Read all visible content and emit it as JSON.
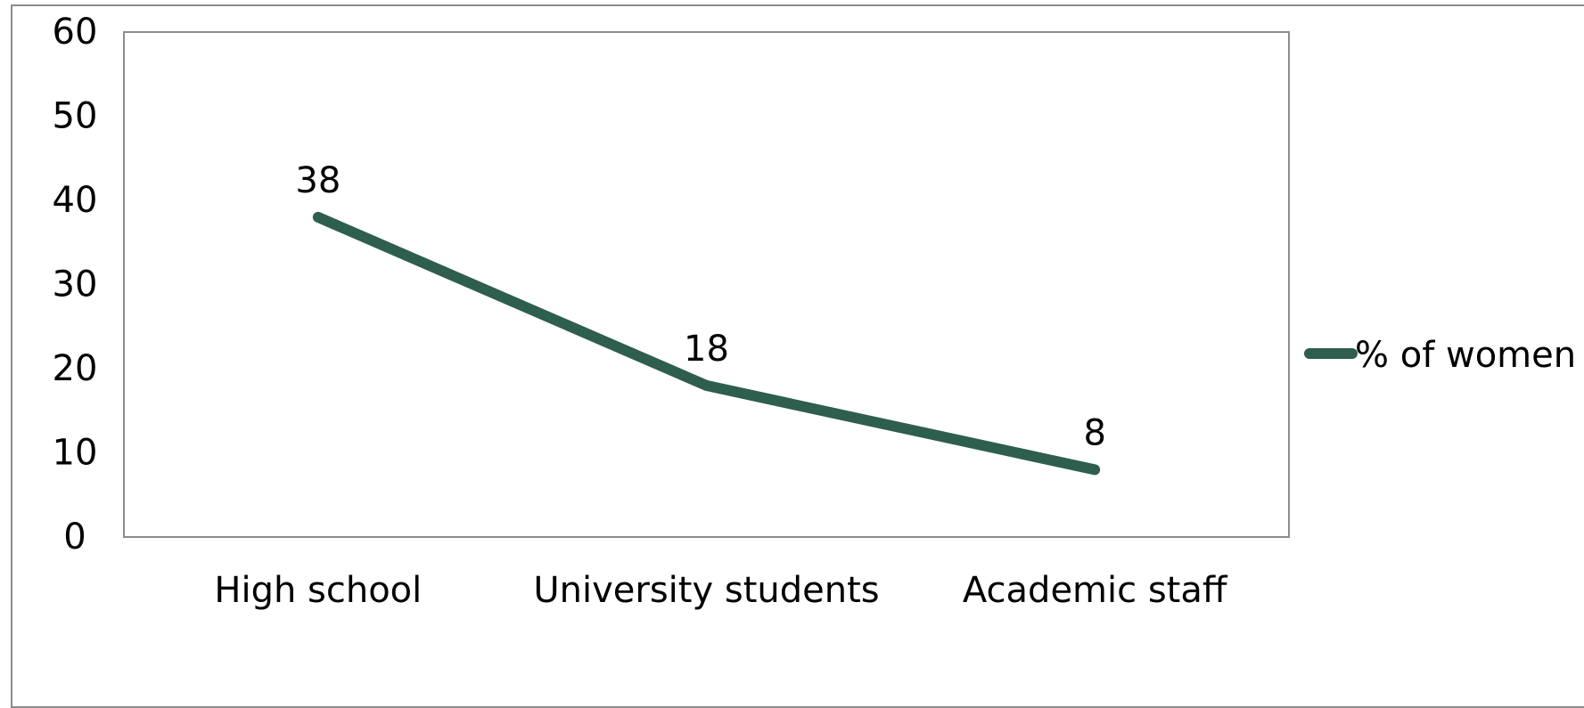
{
  "chart_data": {
    "type": "line",
    "title": "",
    "xlabel": "",
    "ylabel": "",
    "categories": [
      "High school",
      "University students",
      "Academic staff"
    ],
    "series": [
      {
        "name": "% of women",
        "values": [
          38,
          18,
          8
        ],
        "color": "#2e5e4e"
      }
    ],
    "ylim": [
      0,
      60
    ],
    "yticks": [
      "0",
      "10",
      "20",
      "30",
      "40",
      "50",
      "60"
    ],
    "data_labels": [
      "38",
      "18",
      "8"
    ],
    "grid": false,
    "legend_position": "right"
  }
}
